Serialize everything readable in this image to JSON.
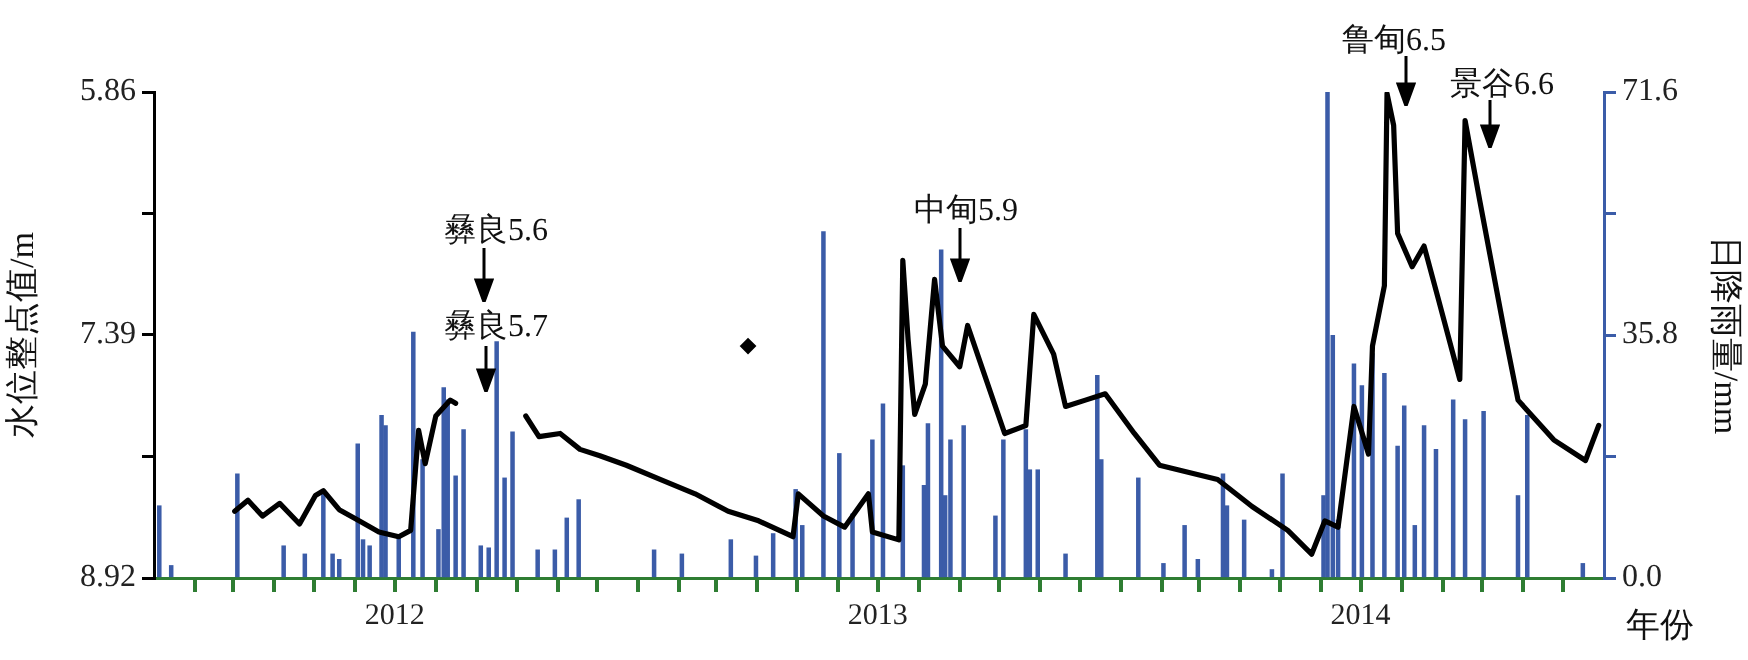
{
  "chart_data": {
    "type": "line",
    "xlabel": "年份",
    "ylabel": "水位整点值/m",
    "y2label": "日降雨量/mm",
    "xlim": [
      "2012-01-01",
      "2015-01-01"
    ],
    "xticks": [
      {
        "value": "2012-02-01",
        "label": null
      },
      {
        "value": "2012-03-01",
        "label": null
      },
      {
        "value": "2012-04-01",
        "label": null
      },
      {
        "value": "2012-05-01",
        "label": null
      },
      {
        "value": "2012-06-01",
        "label": null
      },
      {
        "value": "2012-07-01",
        "label": "2012"
      },
      {
        "value": "2012-08-01",
        "label": null
      },
      {
        "value": "2012-09-01",
        "label": null
      },
      {
        "value": "2012-10-01",
        "label": null
      },
      {
        "value": "2012-11-01",
        "label": null
      },
      {
        "value": "2012-12-01",
        "label": null
      },
      {
        "value": "2013-01-01",
        "label": null
      },
      {
        "value": "2013-02-01",
        "label": null
      },
      {
        "value": "2013-03-01",
        "label": null
      },
      {
        "value": "2013-04-01",
        "label": null
      },
      {
        "value": "2013-05-01",
        "label": null
      },
      {
        "value": "2013-06-01",
        "label": null
      },
      {
        "value": "2013-07-01",
        "label": "2013"
      },
      {
        "value": "2013-08-01",
        "label": null
      },
      {
        "value": "2013-09-01",
        "label": null
      },
      {
        "value": "2013-10-01",
        "label": null
      },
      {
        "value": "2013-11-01",
        "label": null
      },
      {
        "value": "2013-12-01",
        "label": null
      },
      {
        "value": "2014-01-01",
        "label": null
      },
      {
        "value": "2014-02-01",
        "label": null
      },
      {
        "value": "2014-03-01",
        "label": null
      },
      {
        "value": "2014-04-01",
        "label": null
      },
      {
        "value": "2014-05-01",
        "label": null
      },
      {
        "value": "2014-06-01",
        "label": null
      },
      {
        "value": "2014-07-01",
        "label": "2014"
      },
      {
        "value": "2014-08-01",
        "label": null
      },
      {
        "value": "2014-09-01",
        "label": null
      },
      {
        "value": "2014-10-01",
        "label": null
      },
      {
        "value": "2014-11-01",
        "label": null
      },
      {
        "value": "2014-12-01",
        "label": null
      }
    ],
    "ylim": [
      8.92,
      5.86
    ],
    "yticks": [
      5.86,
      {
        "value": 6.625,
        "label": null
      },
      7.39,
      {
        "value": 8.155,
        "label": null
      },
      8.92
    ],
    "y2lim": [
      0,
      71.6
    ],
    "y2ticks": [
      {
        "value": 0,
        "label": "0.0"
      },
      {
        "value": 17.9,
        "label": null
      },
      35.8,
      {
        "value": 53.7,
        "label": null
      },
      71.6
    ],
    "series": [
      {
        "type": "bar",
        "axis": "y2",
        "color": "#3b5ca8",
        "x": [
          "2012-01-05",
          "2012-01-14",
          "2012-03-04",
          "2012-04-08",
          "2012-04-24",
          "2012-05-08",
          "2012-05-15",
          "2012-05-20",
          "2012-06-03",
          "2012-06-07",
          "2012-06-12",
          "2012-06-21",
          "2012-06-24",
          "2012-07-04",
          "2012-07-15",
          "2012-07-22",
          "2012-08-03",
          "2012-08-07",
          "2012-08-10",
          "2012-08-16",
          "2012-08-22",
          "2012-09-04",
          "2012-09-10",
          "2012-09-16",
          "2012-09-22",
          "2012-09-28",
          "2012-10-17",
          "2012-10-30",
          "2012-11-08",
          "2012-11-17",
          "2013-01-13",
          "2013-02-03",
          "2013-03-12",
          "2013-03-31",
          "2013-04-13",
          "2013-04-30",
          "2013-05-05",
          "2013-05-21",
          "2013-06-02",
          "2013-06-12",
          "2013-06-27",
          "2013-07-05",
          "2013-07-17",
          "2013-07-20",
          "2013-08-05",
          "2013-08-08",
          "2013-08-18",
          "2013-08-21",
          "2013-08-25",
          "2013-09-04",
          "2013-09-28",
          "2013-10-04",
          "2013-10-21",
          "2013-10-24",
          "2013-10-30",
          "2013-11-20",
          "2013-12-14",
          "2013-12-17",
          "2014-01-14",
          "2014-02-02",
          "2014-02-18",
          "2014-02-28",
          "2014-03-19",
          "2014-03-22",
          "2014-04-04",
          "2014-04-25",
          "2014-05-03",
          "2014-06-03",
          "2014-06-06",
          "2014-06-10",
          "2014-06-14",
          "2014-06-26",
          "2014-07-02",
          "2014-07-10",
          "2014-07-19",
          "2014-07-29",
          "2014-08-03",
          "2014-08-11",
          "2014-08-18",
          "2014-08-27",
          "2014-09-09",
          "2014-09-18",
          "2014-10-02",
          "2014-10-28",
          "2014-11-04",
          "2014-12-16"
        ],
        "values": [
          10.6,
          1.8,
          15.3,
          4.7,
          3.5,
          12.4,
          3.5,
          2.7,
          19.7,
          5.6,
          4.7,
          23.9,
          22.4,
          6.2,
          36.2,
          17.4,
          7.1,
          28.0,
          26.2,
          15.0,
          21.8,
          4.7,
          4.4,
          34.8,
          14.7,
          21.5,
          4.1,
          4.1,
          8.8,
          11.5,
          4.1,
          3.5,
          5.6,
          3.2,
          6.5,
          13.0,
          7.7,
          51.0,
          18.3,
          9.4,
          20.3,
          25.6,
          null,
          16.5,
          13.6,
          22.7,
          48.3,
          12.1,
          20.3,
          22.4,
          9.1,
          20.3,
          21.8,
          15.9,
          15.9,
          3.5,
          29.8,
          17.4,
          14.7,
          2.1,
          7.7,
          2.7,
          15.3,
          10.6,
          8.5,
          1.2,
          15.3,
          12.1,
          71.6,
          35.7,
          8.5,
          31.5,
          28.3,
          33.0,
          30.1,
          19.4,
          25.3,
          7.7,
          22.4,
          18.9,
          26.2,
          23.3,
          24.5,
          12.1,
          23.9,
          2.1
        ]
      },
      {
        "color": "#000000",
        "x": [
          "2012-03-02",
          "2012-03-12",
          "2012-03-23",
          "2012-04-05",
          "2012-04-20",
          "2012-05-02",
          "2012-05-08",
          "2012-05-20",
          "2012-06-04",
          "2012-06-19",
          "2012-07-04",
          "2012-07-13",
          "2012-07-19",
          "2012-07-24",
          "2012-08-01",
          "2012-08-12",
          "2012-08-16",
          "2012-09-13",
          "2012-10-08",
          "2012-10-18",
          "2012-11-03",
          "2012-11-18",
          "2012-12-03",
          "2012-12-23",
          "2013-01-18",
          "2013-02-13",
          "2013-03-10",
          "2013-04-02",
          "2013-04-28",
          "2013-05-02",
          "2013-05-21",
          "2013-06-06",
          "2013-06-24",
          "2013-06-27",
          "2013-07-17",
          "2013-07-20",
          "2013-07-24",
          "2013-07-29",
          "2013-08-06",
          "2013-08-13",
          "2013-08-19",
          "2013-09-01",
          "2013-09-07",
          "2013-09-16",
          "2013-10-05",
          "2013-10-21",
          "2013-10-27",
          "2013-11-11",
          "2013-11-20",
          "2013-12-05",
          "2013-12-20",
          "2014-01-11",
          "2014-01-30",
          "2014-03-15",
          "2014-04-10",
          "2014-05-07",
          "2014-05-25",
          "2014-06-04",
          "2014-06-14",
          "2014-06-26",
          "2014-07-07",
          "2014-07-10",
          "2014-07-19",
          "2014-07-21",
          "2014-07-26",
          "2014-07-29",
          "2014-08-09",
          "2014-08-18",
          "2014-08-29",
          "2014-09-14",
          "2014-09-18",
          "2014-09-29",
          "2014-10-18",
          "2014-10-28",
          "2014-11-24",
          "2014-12-18",
          "2014-12-28"
        ],
        "values": [
          8.5,
          8.43,
          8.53,
          8.45,
          8.58,
          8.4,
          8.37,
          8.49,
          8.56,
          8.63,
          8.66,
          8.62,
          7.99,
          8.2,
          7.9,
          7.8,
          7.82,
          null,
          7.9,
          8.03,
          8.01,
          8.11,
          8.15,
          8.21,
          8.3,
          8.39,
          8.5,
          8.56,
          8.66,
          8.39,
          8.53,
          8.6,
          8.39,
          8.63,
          8.68,
          6.92,
          7.42,
          7.89,
          7.7,
          7.04,
          7.46,
          7.59,
          7.33,
          7.55,
          8.01,
          7.96,
          7.26,
          7.51,
          7.84,
          7.8,
          7.76,
          8.01,
          8.21,
          8.3,
          8.47,
          8.62,
          8.77,
          8.56,
          8.6,
          7.84,
          8.14,
          7.46,
          7.08,
          5.87,
          6.07,
          6.75,
          6.96,
          6.83,
          7.17,
          7.67,
          6.04,
          6.54,
          7.38,
          7.8,
          8.05,
          8.18,
          7.96
        ]
      },
      {
        "type": "scatter",
        "color": "#000000",
        "marker": "diamond",
        "x": [
          "2013-03-25"
        ],
        "values": [
          7.46
        ]
      }
    ],
    "annotations": [
      "彝良5.6",
      "彝良5.7",
      "中甸5.9",
      "鲁甸6.5",
      "景谷6.6"
    ]
  }
}
